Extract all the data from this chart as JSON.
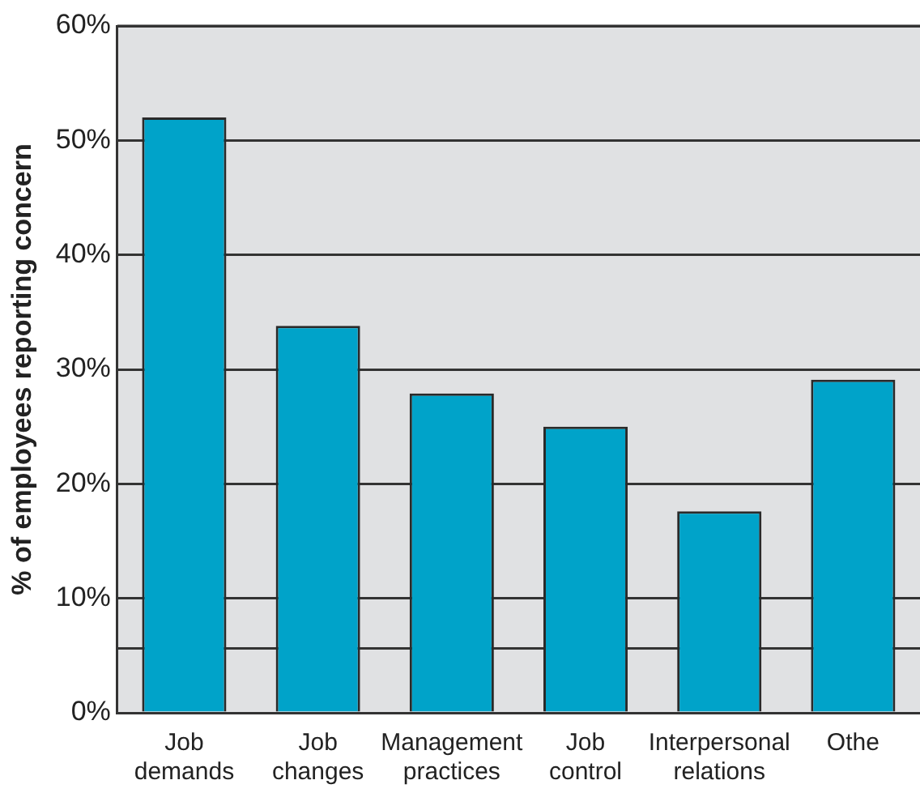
{
  "chart_data": {
    "type": "bar",
    "ylabel": "% of employees reporting concern",
    "categories": [
      "Job\ndemands",
      "Job\nchanges",
      "Management\npractices",
      "Job\ncontrol",
      "Interpersonal\nrelations",
      "Othe"
    ],
    "values": [
      52.0,
      33.8,
      27.9,
      25.0,
      17.6,
      29.1
    ],
    "color": "#00a3c9",
    "ylim": [
      0,
      60
    ],
    "yticks": [
      {
        "value": 0,
        "label": "0%"
      },
      {
        "value": 5.6,
        "label": null
      },
      {
        "value": 10,
        "label": "10%"
      },
      {
        "value": 20,
        "label": "20%"
      },
      {
        "value": 30,
        "label": "30%"
      },
      {
        "value": 40,
        "label": "40%"
      },
      {
        "value": 50,
        "label": "50%"
      },
      {
        "value": 60,
        "label": "60%"
      }
    ],
    "grid": "y",
    "legend": false
  }
}
